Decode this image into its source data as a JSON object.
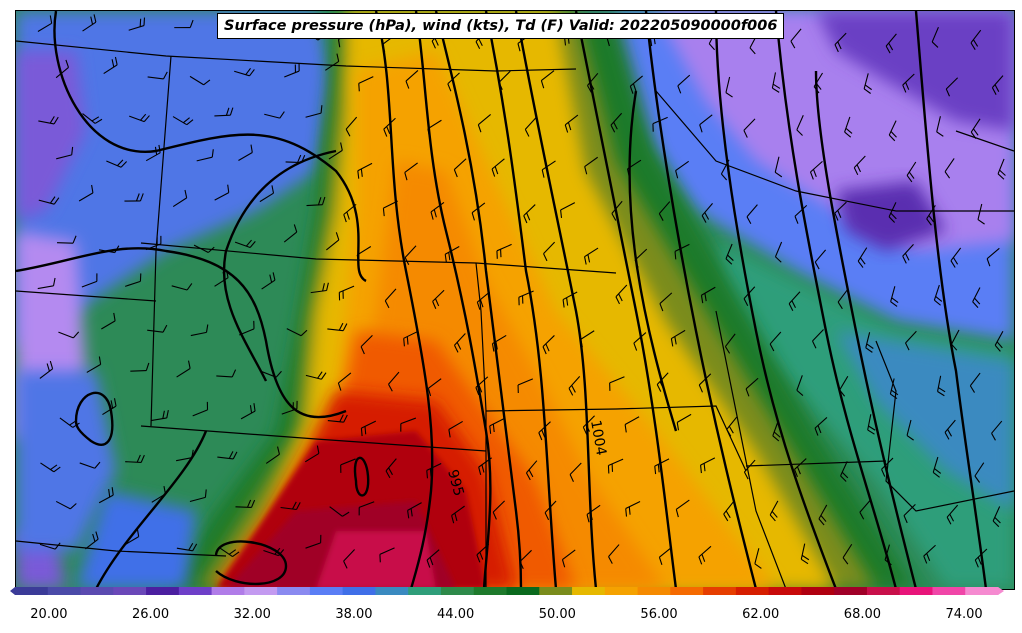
{
  "map": {
    "title": "Surface pressure (hPa), wind (kts), Td (F) Valid: 202205090000f006",
    "contour_labels": [
      {
        "label": "1004",
        "rotation": 80
      },
      {
        "label": "995",
        "rotation": 75
      }
    ],
    "background_color": "#2d8a57",
    "wind_barb_color": "#000000",
    "contour_color": "#000000",
    "border_color": "#000000"
  },
  "colorbar": {
    "min": 18,
    "max": 76,
    "tick_labels": [
      "20.00",
      "26.00",
      "32.00",
      "38.00",
      "44.00",
      "50.00",
      "56.00",
      "62.00",
      "68.00",
      "74.00"
    ],
    "tick_values": [
      20,
      26,
      32,
      38,
      44,
      50,
      56,
      62,
      68,
      74
    ],
    "extend": "both",
    "colors": [
      "#3b3b98",
      "#4a4aa8",
      "#5a4ab0",
      "#6a48b8",
      "#4b1fa0",
      "#6e3fc8",
      "#b07ce8",
      "#c39af0",
      "#8a8af0",
      "#5a7ef5",
      "#3f6fe8",
      "#3a8ac0",
      "#2f9e7a",
      "#2e8a4a",
      "#1e7a2c",
      "#0a6a1e",
      "#7a8c1c",
      "#e6b800",
      "#f5a200",
      "#f58a00",
      "#f56a00",
      "#e63e00",
      "#d61e00",
      "#c80a0a",
      "#b00010",
      "#a00028",
      "#c8104a",
      "#e8147a",
      "#f046a8",
      "#f58ad0"
    ]
  }
}
